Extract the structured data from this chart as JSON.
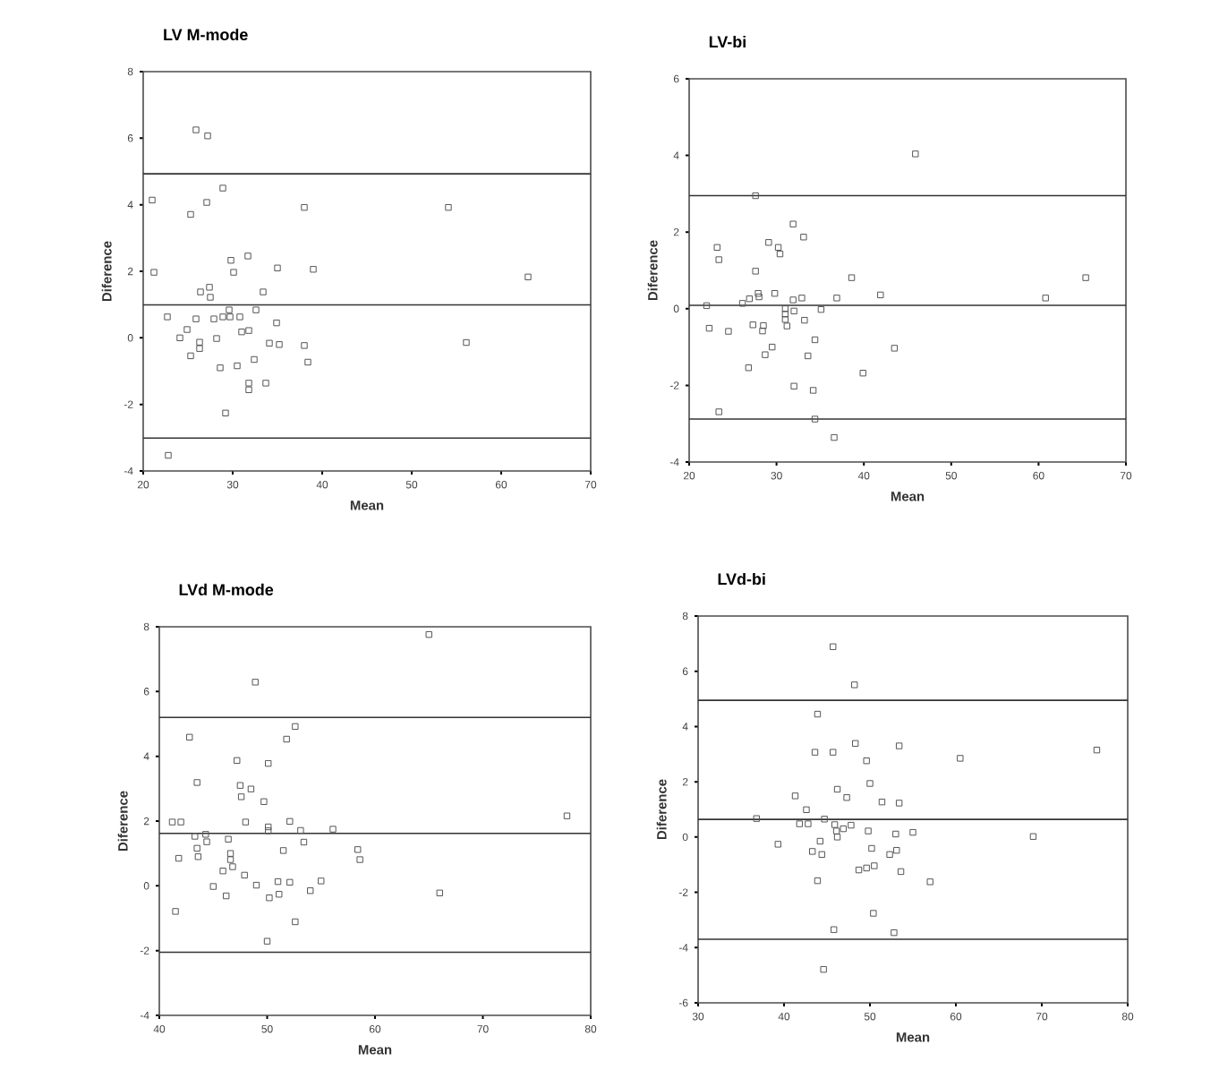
{
  "chart_data": [
    {
      "type": "scatter",
      "title": "LV M-mode",
      "xlabel": "Mean",
      "ylabel": "Diference",
      "color": "#555555",
      "marker": "square",
      "xlim": [
        20,
        70
      ],
      "ylim": [
        -4,
        8
      ],
      "xticks": [
        20,
        30,
        40,
        50,
        60,
        70
      ],
      "yticks": [
        -4,
        -2,
        0,
        2,
        4,
        6,
        8
      ],
      "ref_lines": [
        {
          "axis": "y",
          "value": 4.93,
          "color": "#333333"
        },
        {
          "axis": "y",
          "value": 0.99,
          "color": "#333333"
        },
        {
          "axis": "y",
          "value": -3.01,
          "color": "#333333"
        }
      ],
      "x": [
        25.9,
        27.2,
        28.9,
        21.0,
        27.1,
        25.3,
        38.0,
        54.1,
        21.2,
        29.8,
        30.1,
        31.7,
        35.0,
        39.0,
        63.0,
        26.4,
        27.4,
        27.5,
        33.4,
        22.7,
        25.9,
        27.9,
        28.9,
        29.6,
        29.7,
        30.8,
        32.6,
        24.9,
        24.1,
        26.3,
        26.3,
        28.2,
        31.0,
        31.8,
        34.9,
        25.3,
        28.6,
        30.5,
        32.4,
        34.1,
        35.2,
        38.0,
        38.4,
        31.8,
        31.8,
        33.7,
        29.2,
        22.8,
        56.1
      ],
      "values": [
        6.25,
        6.07,
        4.5,
        4.14,
        4.07,
        3.71,
        3.92,
        3.92,
        1.97,
        2.33,
        1.97,
        2.46,
        2.1,
        2.06,
        1.83,
        1.38,
        1.52,
        1.22,
        1.38,
        0.63,
        0.57,
        0.57,
        0.63,
        0.84,
        0.63,
        0.63,
        0.84,
        0.25,
        0.0,
        -0.13,
        -0.32,
        -0.02,
        0.18,
        0.22,
        0.45,
        -0.54,
        -0.9,
        -0.84,
        -0.65,
        -0.16,
        -0.2,
        -0.23,
        -0.73,
        -1.36,
        -1.56,
        -1.36,
        -2.26,
        -3.53,
        -0.14
      ]
    },
    {
      "type": "scatter",
      "title": "LV-bi",
      "xlabel": "Mean",
      "ylabel": "Diference",
      "color": "#555555",
      "marker": "square",
      "xlim": [
        20,
        70
      ],
      "ylim": [
        -4,
        6
      ],
      "xticks": [
        20,
        30,
        40,
        50,
        60,
        70
      ],
      "yticks": [
        -4,
        -2,
        0,
        2,
        4,
        6
      ],
      "ref_lines": [
        {
          "axis": "y",
          "value": 2.95,
          "color": "#333333"
        },
        {
          "axis": "y",
          "value": 0.09,
          "color": "#333333"
        },
        {
          "axis": "y",
          "value": -2.88,
          "color": "#333333"
        }
      ],
      "x": [
        45.9,
        27.6,
        31.9,
        33.1,
        23.2,
        23.4,
        29.1,
        30.2,
        30.4,
        27.6,
        38.6,
        65.4,
        22.0,
        26.1,
        26.9,
        27.9,
        28.0,
        29.8,
        31.9,
        32.9,
        36.9,
        41.9,
        60.8,
        31.0,
        31.0,
        31.0,
        32.0,
        35.1,
        33.2,
        31.2,
        22.3,
        24.5,
        27.3,
        28.5,
        28.4,
        34.4,
        29.5,
        28.7,
        33.6,
        43.5,
        26.8,
        39.9,
        32.0,
        34.2,
        23.4,
        34.4,
        36.6
      ],
      "values": [
        4.04,
        2.95,
        2.21,
        1.87,
        1.6,
        1.28,
        1.73,
        1.6,
        1.43,
        0.98,
        0.81,
        0.81,
        0.08,
        0.14,
        0.26,
        0.4,
        0.31,
        0.4,
        0.23,
        0.28,
        0.28,
        0.36,
        0.28,
        0.0,
        -0.14,
        -0.28,
        -0.06,
        -0.02,
        -0.3,
        -0.45,
        -0.51,
        -0.59,
        -0.42,
        -0.44,
        -0.58,
        -0.81,
        -1.0,
        -1.2,
        -1.23,
        -1.03,
        -1.54,
        -1.68,
        -2.02,
        -2.13,
        -2.69,
        -2.88,
        -3.36
      ]
    },
    {
      "type": "scatter",
      "title": "LVd M-mode",
      "xlabel": "Mean",
      "ylabel": "Diference",
      "color": "#555555",
      "marker": "square",
      "xlim": [
        40,
        80
      ],
      "ylim": [
        -4,
        8
      ],
      "xticks": [
        40,
        50,
        60,
        70,
        80
      ],
      "yticks": [
        -4,
        -2,
        0,
        2,
        4,
        6,
        8
      ],
      "ref_lines": [
        {
          "axis": "y",
          "value": 5.2,
          "color": "#333333"
        },
        {
          "axis": "y",
          "value": 1.62,
          "color": "#333333"
        },
        {
          "axis": "y",
          "value": -2.05,
          "color": "#333333"
        }
      ],
      "x": [
        65.0,
        48.9,
        52.6,
        42.8,
        51.8,
        47.2,
        50.1,
        43.5,
        47.5,
        48.5,
        47.6,
        49.7,
        41.2,
        42.0,
        48.0,
        52.1,
        77.8,
        50.1,
        50.1,
        53.1,
        56.1,
        43.3,
        44.3,
        44.4,
        46.4,
        53.4,
        43.5,
        43.6,
        41.8,
        46.6,
        46.6,
        51.5,
        58.4,
        58.6,
        46.8,
        45.9,
        47.9,
        45.0,
        49.0,
        51.0,
        52.1,
        55.0,
        46.2,
        50.2,
        51.1,
        54.0,
        66.0,
        41.5,
        52.6,
        50.0
      ],
      "values": [
        7.76,
        6.29,
        4.92,
        4.59,
        4.53,
        3.87,
        3.78,
        3.19,
        3.1,
        2.99,
        2.75,
        2.6,
        1.97,
        1.97,
        1.97,
        1.99,
        2.16,
        1.82,
        1.7,
        1.71,
        1.75,
        1.53,
        1.59,
        1.36,
        1.44,
        1.35,
        1.16,
        0.9,
        0.85,
        1.0,
        0.81,
        1.09,
        1.12,
        0.81,
        0.59,
        0.46,
        0.33,
        -0.02,
        0.02,
        0.13,
        0.11,
        0.15,
        -0.31,
        -0.37,
        -0.26,
        -0.15,
        -0.22,
        -0.79,
        -1.11,
        -1.71
      ]
    },
    {
      "type": "scatter",
      "title": "LVd-bi",
      "xlabel": "Mean",
      "ylabel": "Diference",
      "color": "#555555",
      "marker": "square",
      "xlim": [
        30,
        80
      ],
      "ylim": [
        -6,
        8
      ],
      "xticks": [
        30,
        40,
        50,
        60,
        70,
        80
      ],
      "yticks": [
        -6,
        -4,
        -2,
        0,
        2,
        4,
        6,
        8
      ],
      "ref_lines": [
        {
          "axis": "y",
          "value": 4.95,
          "color": "#333333"
        },
        {
          "axis": "y",
          "value": 0.64,
          "color": "#333333"
        },
        {
          "axis": "y",
          "value": -3.7,
          "color": "#333333"
        }
      ],
      "x": [
        45.7,
        48.2,
        43.9,
        48.3,
        43.6,
        45.7,
        53.4,
        76.4,
        60.5,
        49.6,
        50.0,
        46.2,
        47.3,
        41.3,
        51.4,
        53.4,
        42.6,
        36.8,
        41.8,
        42.8,
        44.7,
        45.9,
        46.1,
        46.9,
        47.8,
        46.2,
        49.8,
        53.0,
        55.0,
        69.0,
        39.3,
        44.2,
        43.3,
        44.4,
        50.2,
        52.3,
        53.1,
        48.7,
        49.6,
        50.5,
        53.6,
        57.0,
        43.9,
        50.4,
        45.8,
        52.8,
        44.6
      ],
      "values": [
        6.89,
        5.51,
        4.45,
        3.39,
        3.07,
        3.07,
        3.3,
        3.15,
        2.85,
        2.76,
        1.94,
        1.73,
        1.43,
        1.49,
        1.27,
        1.23,
        0.99,
        0.67,
        0.48,
        0.48,
        0.65,
        0.45,
        0.22,
        0.3,
        0.43,
        0.0,
        0.22,
        0.11,
        0.17,
        0.02,
        -0.26,
        -0.15,
        -0.52,
        -0.63,
        -0.41,
        -0.63,
        -0.48,
        -1.19,
        -1.12,
        -1.04,
        -1.25,
        -1.62,
        -1.58,
        -2.76,
        -3.35,
        -3.46,
        -4.79
      ]
    }
  ]
}
